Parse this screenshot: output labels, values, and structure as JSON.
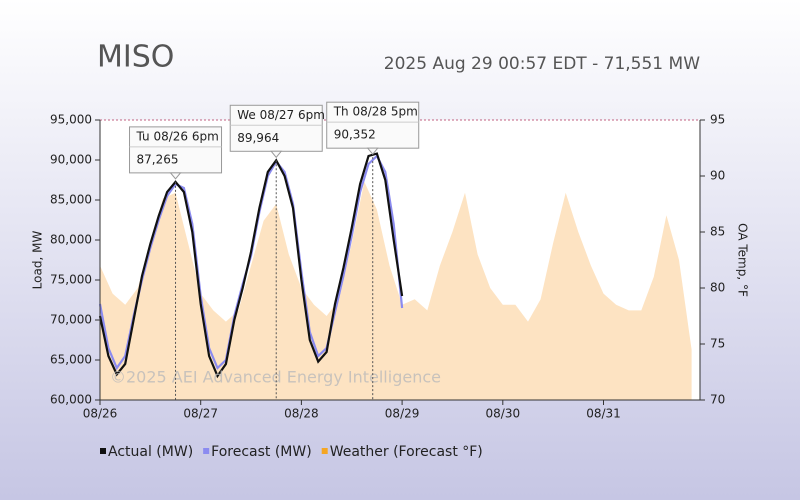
{
  "chart_data": {
    "type": "line",
    "title": "MISO",
    "subtitle": "2025 Aug 29 00:57 EDT - 71,551 MW",
    "ylabel": "Load, MW",
    "y2label": "OA Temp, °F",
    "watermark": "©2025 AEI Advanced Energy Intelligence",
    "xlim": [
      0,
      143
    ],
    "xticks": [
      {
        "value": 0,
        "label": "08/26"
      },
      {
        "value": 24,
        "label": "08/27"
      },
      {
        "value": 48,
        "label": "08/28"
      },
      {
        "value": 72,
        "label": "08/29"
      },
      {
        "value": 96,
        "label": "08/30"
      },
      {
        "value": 120,
        "label": "08/31"
      }
    ],
    "ylim": [
      60000,
      95000
    ],
    "yticks": [
      {
        "value": 60000,
        "label": "60,000"
      },
      {
        "value": 65000,
        "label": "65,000"
      },
      {
        "value": 70000,
        "label": "70,000"
      },
      {
        "value": 75000,
        "label": "75,000"
      },
      {
        "value": 80000,
        "label": "80,000"
      },
      {
        "value": 85000,
        "label": "85,000"
      },
      {
        "value": 90000,
        "label": "90,000"
      },
      {
        "value": 95000,
        "label": "95,000"
      }
    ],
    "y2lim": [
      70,
      95
    ],
    "y2ticks": [
      70,
      75,
      80,
      85,
      90,
      95
    ],
    "series": [
      {
        "name": "Weather (Forecast °F)",
        "color": "#fde3c2",
        "legend_color": "#f5a623",
        "kind": "area",
        "axis": "y2",
        "x": [
          0,
          3,
          6,
          9,
          12,
          15,
          18,
          21,
          24,
          27,
          30,
          33,
          36,
          39,
          42,
          45,
          48,
          51,
          54,
          57,
          60,
          63,
          66,
          69,
          72,
          75,
          78,
          81,
          84,
          87,
          90,
          93,
          96,
          99,
          102,
          105,
          108,
          111,
          114,
          117,
          120,
          123,
          126,
          129,
          132,
          135,
          138,
          141
        ],
        "values": [
          82,
          79.5,
          78.5,
          80,
          84,
          88,
          88.5,
          84,
          79.5,
          78,
          77,
          78,
          82,
          86,
          87.5,
          83,
          80,
          78.5,
          77.5,
          79,
          84,
          89.5,
          87,
          82,
          78.5,
          79,
          78,
          82,
          85,
          88.5,
          83,
          80,
          78.5,
          78.5,
          77,
          79,
          84,
          88.5,
          85,
          82,
          79.5,
          78.5,
          78,
          78,
          81,
          86.5,
          82.5,
          74.5
        ]
      },
      {
        "name": "Forecast (MW)",
        "color": "#8b8bf0",
        "kind": "line",
        "x": [
          0,
          2,
          4,
          6,
          8,
          10,
          12,
          14,
          16,
          18,
          20,
          22,
          24,
          26,
          28,
          30,
          32,
          34,
          36,
          38,
          40,
          42,
          44,
          46,
          48,
          50,
          52,
          54,
          56,
          58,
          60,
          62,
          64,
          66,
          68,
          70,
          72
        ],
        "values": [
          72000,
          66500,
          64000,
          65500,
          70500,
          75000,
          79000,
          82500,
          85500,
          87000,
          86500,
          82000,
          73000,
          66500,
          64000,
          65000,
          70500,
          74500,
          78000,
          83500,
          88000,
          89800,
          88500,
          84500,
          76000,
          68500,
          65500,
          66500,
          71000,
          75500,
          80500,
          86000,
          89500,
          90500,
          88500,
          82000,
          71500
        ]
      },
      {
        "name": "Actual (MW)",
        "color": "#111111",
        "kind": "line",
        "x": [
          0,
          2,
          4,
          6,
          8,
          10,
          12,
          14,
          16,
          18,
          20,
          22,
          24,
          26,
          28,
          30,
          32,
          34,
          36,
          38,
          40,
          42,
          44,
          46,
          48,
          50,
          52,
          54,
          56,
          58,
          60,
          62,
          64,
          66,
          68,
          70,
          72
        ],
        "values": [
          70500,
          65500,
          63200,
          64500,
          70000,
          75500,
          79500,
          83000,
          86000,
          87265,
          86000,
          81000,
          72000,
          65500,
          63000,
          64500,
          70000,
          74000,
          78500,
          84000,
          88500,
          89964,
          88000,
          84000,
          75000,
          67500,
          64800,
          66000,
          72000,
          76500,
          81500,
          87000,
          90500,
          90800,
          87500,
          80000,
          73000
        ]
      }
    ],
    "legend_order": [
      2,
      1,
      0
    ],
    "annotations": [
      {
        "x": 18,
        "label": "Tu 08/26 6pm",
        "value": 87265,
        "value_label": "87,265"
      },
      {
        "x": 42,
        "label": "We 08/27 6pm",
        "value": 89964,
        "value_label": "89,964"
      },
      {
        "x": 65,
        "label": "Th 08/28 5pm",
        "value": 90352,
        "value_label": "90,352"
      }
    ]
  }
}
